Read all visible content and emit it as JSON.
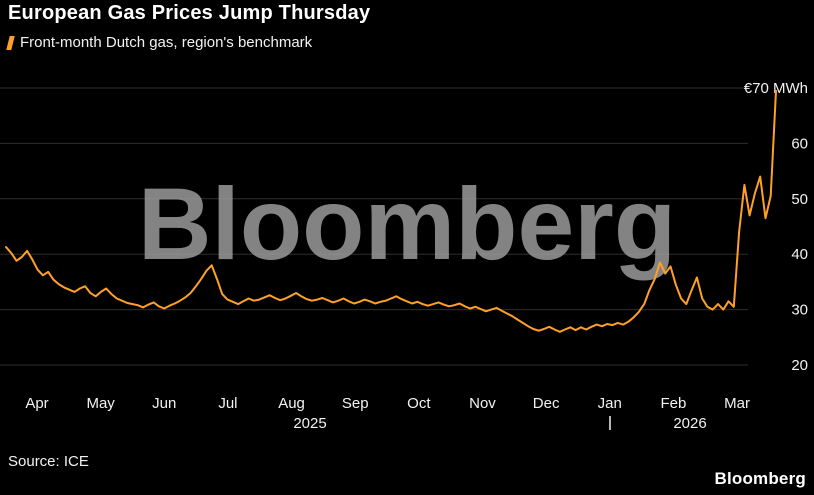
{
  "header": {
    "title": "European Gas Prices Jump Thursday",
    "legend_label": "Front-month Dutch gas, region's benchmark"
  },
  "footer": {
    "source": "Source: ICE",
    "logo": "Bloomberg"
  },
  "colors": {
    "background": "#000000",
    "line": "#ffa028",
    "grid": "#2e2e2e",
    "axis_text": "#f2f2f2",
    "watermark": "#9b9b9b"
  },
  "chart_data": {
    "type": "line",
    "title": "European Gas Prices Jump Thursday",
    "legend": "Front-month Dutch gas, region's benchmark",
    "watermark": "Bloomberg",
    "grid": true,
    "legend_position": "top-left",
    "ylabel": "€ MWh",
    "ylim": [
      20,
      70
    ],
    "y_ticks": [
      70,
      60,
      50,
      40,
      30,
      20
    ],
    "y_tick_labels": [
      "€70 MWh",
      "60",
      "50",
      "40",
      "30",
      "20"
    ],
    "x_tick_labels": [
      "Apr",
      "May",
      "Jun",
      "Jul",
      "Aug",
      "Sep",
      "Oct",
      "Nov",
      "Dec",
      "Jan",
      "Feb",
      "Mar"
    ],
    "year_labels": [
      "2025",
      "2026"
    ],
    "source": "ICE",
    "series": [
      {
        "name": "Front-month Dutch gas",
        "color": "#ffa028",
        "values": [
          41.3,
          40.2,
          38.8,
          39.5,
          40.6,
          39.0,
          37.2,
          36.2,
          36.8,
          35.4,
          34.6,
          34.0,
          33.6,
          33.2,
          33.8,
          34.2,
          33.0,
          32.4,
          33.2,
          33.8,
          32.8,
          32.0,
          31.6,
          31.2,
          31.0,
          30.8,
          30.4,
          30.9,
          31.3,
          30.6,
          30.2,
          30.7,
          31.1,
          31.6,
          32.2,
          33.0,
          34.2,
          35.5,
          37.0,
          38.0,
          35.5,
          32.8,
          31.8,
          31.4,
          31.0,
          31.5,
          32.0,
          31.6,
          31.8,
          32.2,
          32.6,
          32.1,
          31.7,
          32.0,
          32.5,
          33.0,
          32.4,
          31.9,
          31.6,
          31.8,
          32.1,
          31.7,
          31.3,
          31.6,
          32.0,
          31.5,
          31.1,
          31.4,
          31.8,
          31.5,
          31.1,
          31.4,
          31.6,
          32.0,
          32.4,
          31.9,
          31.5,
          31.1,
          31.4,
          31.0,
          30.7,
          31.0,
          31.3,
          30.9,
          30.6,
          30.8,
          31.1,
          30.6,
          30.2,
          30.5,
          30.1,
          29.7,
          30.0,
          30.3,
          29.8,
          29.3,
          28.8,
          28.2,
          27.6,
          27.0,
          26.5,
          26.2,
          26.5,
          26.9,
          26.4,
          26.0,
          26.4,
          26.8,
          26.3,
          26.8,
          26.4,
          26.9,
          27.3,
          27.0,
          27.4,
          27.2,
          27.6,
          27.3,
          27.8,
          28.6,
          29.6,
          31.0,
          33.5,
          35.5,
          38.5,
          36.5,
          37.8,
          34.5,
          32.0,
          31.0,
          33.5,
          35.8,
          32.0,
          30.5,
          30.0,
          31.0,
          30.0,
          31.5,
          30.5,
          44.0,
          52.5,
          47.0,
          51.0,
          54.0,
          46.5,
          50.5,
          69.5
        ]
      }
    ]
  }
}
